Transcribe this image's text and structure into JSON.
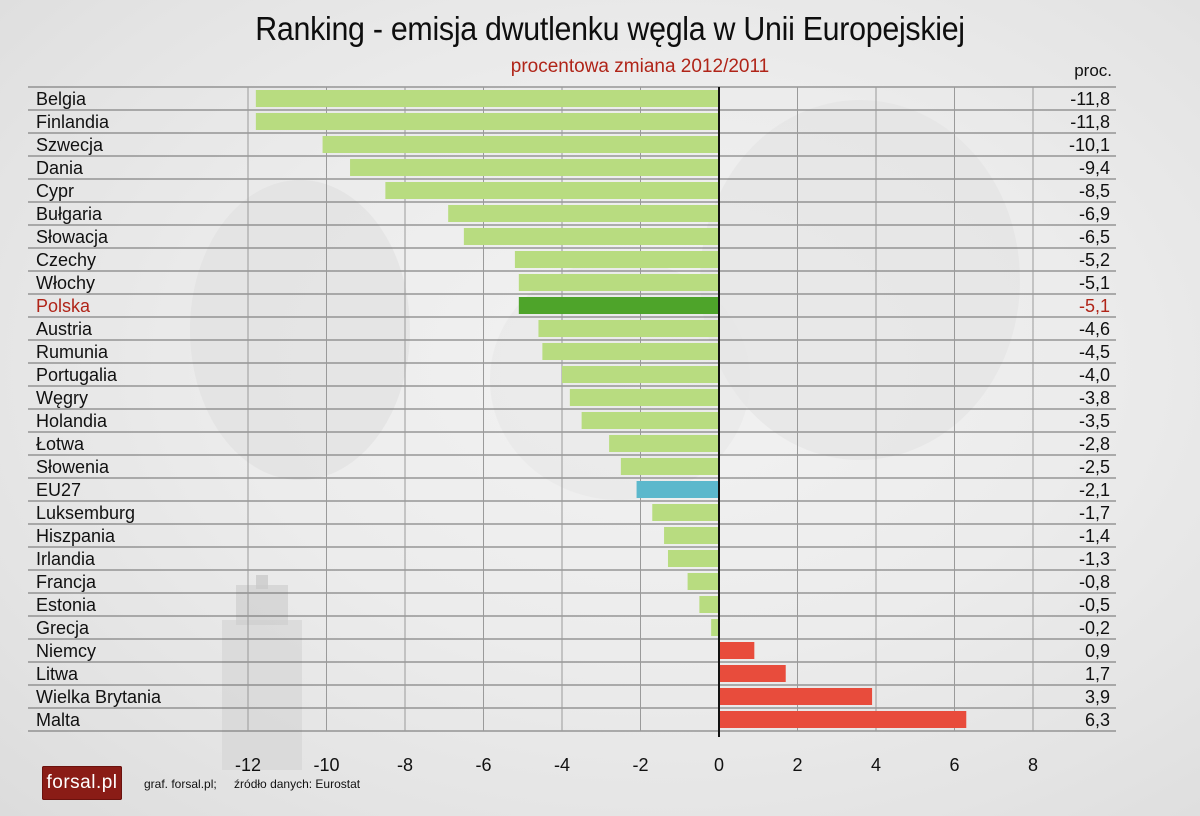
{
  "title": "Ranking - emisja dwutlenku węgla  w Unii Europejskiej",
  "subtitle": "procentowa zmiana 2012/2011",
  "unit_label": "proc.",
  "credit": {
    "graphic": "graf. forsal.pl;",
    "source": "źródło danych: Eurostat"
  },
  "logo_text": "forsal.pl",
  "colors": {
    "negative": "#b8dc80",
    "highlight": "#4ea42a",
    "aggregate": "#5cb8cc",
    "positive": "#e84c3c",
    "highlight_text": "#b02418"
  },
  "chart_data": {
    "type": "bar",
    "orientation": "horizontal",
    "title": "Ranking - emisja dwutlenku węgla  w Unii Europejskiej",
    "subtitle": "procentowa zmiana 2012/2011",
    "xlim": [
      -12,
      8
    ],
    "xticks": [
      -12,
      -10,
      -8,
      -6,
      -4,
      -2,
      0,
      2,
      4,
      6,
      8
    ],
    "grid": "vertical",
    "highlight": "Polska",
    "aggregate": "EU27",
    "rows": [
      {
        "country": "Belgia",
        "value": -11.8,
        "label": "-11,8"
      },
      {
        "country": "Finlandia",
        "value": -11.8,
        "label": "-11,8"
      },
      {
        "country": "Szwecja",
        "value": -10.1,
        "label": "-10,1"
      },
      {
        "country": "Dania",
        "value": -9.4,
        "label": "-9,4"
      },
      {
        "country": "Cypr",
        "value": -8.5,
        "label": "-8,5"
      },
      {
        "country": "Bułgaria",
        "value": -6.9,
        "label": "-6,9"
      },
      {
        "country": "Słowacja",
        "value": -6.5,
        "label": "-6,5"
      },
      {
        "country": "Czechy",
        "value": -5.2,
        "label": "-5,2"
      },
      {
        "country": "Włochy",
        "value": -5.1,
        "label": "-5,1"
      },
      {
        "country": "Polska",
        "value": -5.1,
        "label": "-5,1"
      },
      {
        "country": "Austria",
        "value": -4.6,
        "label": "-4,6"
      },
      {
        "country": "Rumunia",
        "value": -4.5,
        "label": "-4,5"
      },
      {
        "country": "Portugalia",
        "value": -4.0,
        "label": "-4,0"
      },
      {
        "country": "Węgry",
        "value": -3.8,
        "label": "-3,8"
      },
      {
        "country": "Holandia",
        "value": -3.5,
        "label": "-3,5"
      },
      {
        "country": "Łotwa",
        "value": -2.8,
        "label": "-2,8"
      },
      {
        "country": "Słowenia",
        "value": -2.5,
        "label": "-2,5"
      },
      {
        "country": "EU27",
        "value": -2.1,
        "label": "-2,1"
      },
      {
        "country": "Luksemburg",
        "value": -1.7,
        "label": "-1,7"
      },
      {
        "country": "Hiszpania",
        "value": -1.4,
        "label": "-1,4"
      },
      {
        "country": "Irlandia",
        "value": -1.3,
        "label": "-1,3"
      },
      {
        "country": "Francja",
        "value": -0.8,
        "label": "-0,8"
      },
      {
        "country": "Estonia",
        "value": -0.5,
        "label": "-0,5"
      },
      {
        "country": "Grecja",
        "value": -0.2,
        "label": "-0,2"
      },
      {
        "country": "Niemcy",
        "value": 0.9,
        "label": "0,9"
      },
      {
        "country": "Litwa",
        "value": 1.7,
        "label": "1,7"
      },
      {
        "country": "Wielka Brytania",
        "value": 3.9,
        "label": "3,9"
      },
      {
        "country": "Malta",
        "value": 6.3,
        "label": "6,3"
      }
    ]
  }
}
